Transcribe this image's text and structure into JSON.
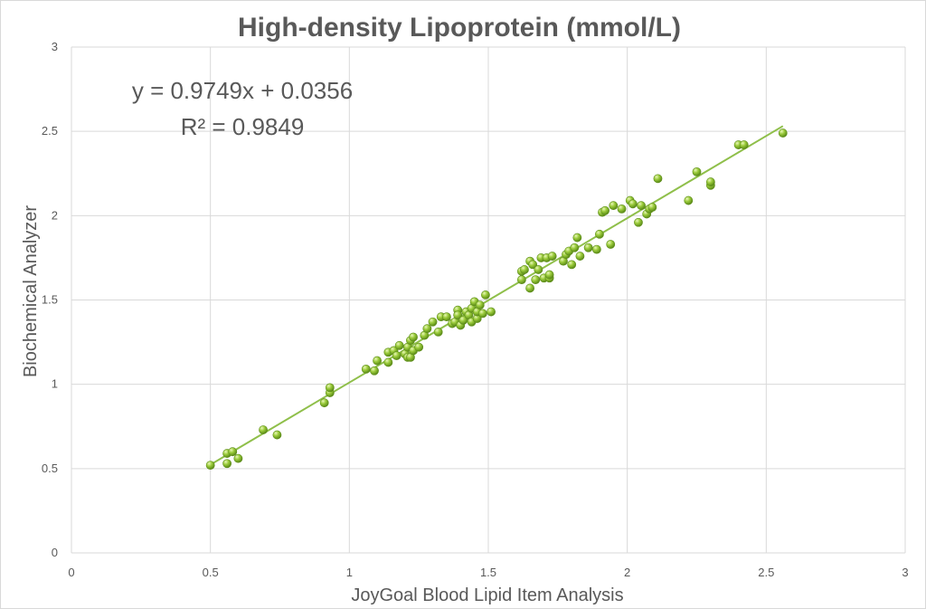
{
  "chart_data": {
    "type": "scatter",
    "title": "High-density Lipoprotein (mmol/L)",
    "xlabel": "JoyGoal Blood Lipid Item Analysis",
    "ylabel": "Biochemical  Analyzer",
    "xlim": [
      0,
      3
    ],
    "ylim": [
      0,
      3
    ],
    "x_ticks": [
      "0",
      "0.5",
      "1",
      "1.5",
      "2",
      "2.5",
      "3"
    ],
    "y_ticks": [
      "0",
      "0.5",
      "1",
      "1.5",
      "2",
      "2.5",
      "3"
    ],
    "grid": true,
    "legend": "none",
    "marker_color": "#8cc63f",
    "trendline_color": "#8fbf4a",
    "trendline": {
      "type": "linear",
      "slope": 0.9749,
      "intercept": 0.0356,
      "x_range": [
        0.5,
        2.56
      ],
      "equation_label": "y = 0.9749x + 0.0356",
      "r2_label": "R² = 0.9849"
    },
    "points": [
      [
        0.5,
        0.52
      ],
      [
        0.56,
        0.53
      ],
      [
        0.56,
        0.59
      ],
      [
        0.58,
        0.6
      ],
      [
        0.6,
        0.56
      ],
      [
        0.69,
        0.73
      ],
      [
        0.74,
        0.7
      ],
      [
        0.91,
        0.89
      ],
      [
        0.93,
        0.95
      ],
      [
        0.93,
        0.98
      ],
      [
        1.06,
        1.09
      ],
      [
        1.09,
        1.08
      ],
      [
        1.1,
        1.14
      ],
      [
        1.14,
        1.13
      ],
      [
        1.14,
        1.19
      ],
      [
        1.16,
        1.2
      ],
      [
        1.17,
        1.17
      ],
      [
        1.18,
        1.23
      ],
      [
        1.2,
        1.18
      ],
      [
        1.21,
        1.16
      ],
      [
        1.21,
        1.22
      ],
      [
        1.22,
        1.16
      ],
      [
        1.22,
        1.26
      ],
      [
        1.23,
        1.2
      ],
      [
        1.23,
        1.28
      ],
      [
        1.25,
        1.22
      ],
      [
        1.27,
        1.29
      ],
      [
        1.28,
        1.33
      ],
      [
        1.3,
        1.37
      ],
      [
        1.32,
        1.31
      ],
      [
        1.33,
        1.4
      ],
      [
        1.35,
        1.4
      ],
      [
        1.37,
        1.36
      ],
      [
        1.38,
        1.37
      ],
      [
        1.39,
        1.44
      ],
      [
        1.39,
        1.41
      ],
      [
        1.4,
        1.35
      ],
      [
        1.41,
        1.38
      ],
      [
        1.42,
        1.43
      ],
      [
        1.43,
        1.41
      ],
      [
        1.44,
        1.45
      ],
      [
        1.44,
        1.37
      ],
      [
        1.45,
        1.49
      ],
      [
        1.46,
        1.39
      ],
      [
        1.46,
        1.43
      ],
      [
        1.47,
        1.47
      ],
      [
        1.48,
        1.42
      ],
      [
        1.49,
        1.53
      ],
      [
        1.51,
        1.43
      ],
      [
        1.62,
        1.62
      ],
      [
        1.62,
        1.67
      ],
      [
        1.63,
        1.68
      ],
      [
        1.65,
        1.57
      ],
      [
        1.65,
        1.73
      ],
      [
        1.66,
        1.71
      ],
      [
        1.67,
        1.62
      ],
      [
        1.68,
        1.68
      ],
      [
        1.69,
        1.75
      ],
      [
        1.7,
        1.63
      ],
      [
        1.71,
        1.75
      ],
      [
        1.72,
        1.63
      ],
      [
        1.73,
        1.76
      ],
      [
        1.72,
        1.65
      ],
      [
        1.77,
        1.73
      ],
      [
        1.78,
        1.77
      ],
      [
        1.79,
        1.79
      ],
      [
        1.8,
        1.71
      ],
      [
        1.81,
        1.81
      ],
      [
        1.82,
        1.87
      ],
      [
        1.83,
        1.76
      ],
      [
        1.86,
        1.81
      ],
      [
        1.89,
        1.8
      ],
      [
        1.9,
        1.89
      ],
      [
        1.91,
        2.02
      ],
      [
        1.92,
        2.03
      ],
      [
        1.94,
        1.83
      ],
      [
        1.95,
        2.06
      ],
      [
        1.98,
        2.04
      ],
      [
        2.01,
        2.09
      ],
      [
        2.02,
        2.07
      ],
      [
        2.04,
        1.96
      ],
      [
        2.05,
        2.06
      ],
      [
        2.07,
        2.01
      ],
      [
        2.08,
        2.04
      ],
      [
        2.09,
        2.05
      ],
      [
        2.11,
        2.22
      ],
      [
        2.22,
        2.09
      ],
      [
        2.25,
        2.26
      ],
      [
        2.3,
        2.18
      ],
      [
        2.3,
        2.2
      ],
      [
        2.4,
        2.42
      ],
      [
        2.42,
        2.42
      ],
      [
        2.56,
        2.49
      ]
    ]
  }
}
